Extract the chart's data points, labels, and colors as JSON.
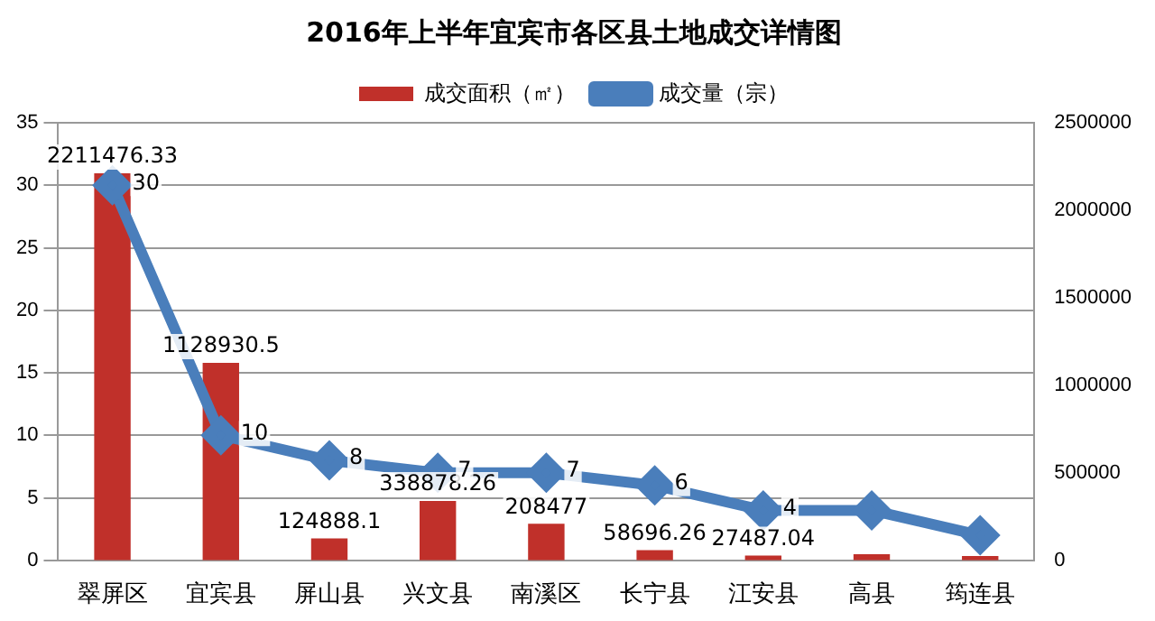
{
  "chart_data": {
    "type": "bar",
    "title": "2016年上半年宜宾市各区县土地成交详情图",
    "categories": [
      "翠屏区",
      "宜宾县",
      "屏山县",
      "兴文县",
      "南溪区",
      "长宁县",
      "江安县",
      "高县",
      "筠连县"
    ],
    "series": [
      {
        "name": "成交面积（㎡）",
        "axis": "y2",
        "color": "#c0302a",
        "values": [
          2211476.33,
          1128930.5,
          124888.1,
          338878.26,
          208477,
          58696.26,
          27487.04,
          35000,
          25000
        ],
        "value_labels": [
          "2211476.33",
          "1128930.5",
          "124888.1",
          "338878.26",
          "208477",
          "58696.26",
          "27487.04",
          null,
          null
        ]
      },
      {
        "name": "成交量（宗）",
        "type": "line",
        "axis": "y",
        "color": "#4a7ebb",
        "marker": "diamond",
        "values": [
          30,
          10,
          8,
          7,
          7,
          6,
          4,
          4,
          2
        ],
        "value_labels": [
          "30",
          "10",
          "8",
          "7",
          "7",
          "6",
          "4",
          null,
          null
        ]
      }
    ],
    "ylim": [
      0,
      35
    ],
    "yticks": [
      0,
      5,
      10,
      15,
      20,
      25,
      30,
      35
    ],
    "y2lim": [
      0,
      2500000
    ],
    "y2ticks": [
      0,
      500000,
      1000000,
      1500000,
      2000000,
      2500000
    ],
    "grid": "y",
    "legend": "top"
  }
}
